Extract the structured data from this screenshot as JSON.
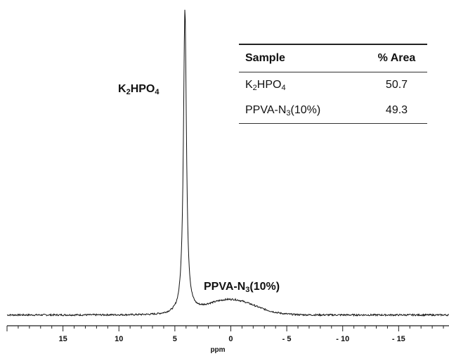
{
  "chart_data": {
    "type": "line",
    "xlabel": "ppm",
    "xlim": [
      20,
      -19.5
    ],
    "x_reversed": true,
    "x_ticks": [
      15,
      10,
      5,
      0,
      -5,
      -10,
      -15
    ],
    "x_tick_labels": [
      "15",
      "10",
      "5",
      "0",
      "- 5",
      "- 10",
      "- 15"
    ],
    "ylim": [
      0,
      100
    ],
    "y_axis_shown": false,
    "grid": false,
    "peaks": [
      {
        "name": "K2HPO4",
        "center_ppm": 4.1,
        "height": 100,
        "width_ppm": 0.32
      },
      {
        "name": "PPVA-N3(10%)",
        "center_ppm": 0.0,
        "height": 5.0,
        "width_ppm": 3.6
      }
    ],
    "series": [
      {
        "x": [
          20,
          15,
          10,
          8,
          6,
          5,
          4.6,
          4.4,
          4.25,
          4.15,
          4.1,
          4.05,
          3.95,
          3.8,
          3.6,
          3.2,
          2.5,
          1.5,
          0,
          -1.5,
          -3,
          -5,
          -10,
          -15,
          -19.5
        ],
        "y": [
          0.3,
          0.3,
          0.4,
          0.6,
          1.5,
          4.5,
          12,
          30,
          70,
          96,
          100,
          96,
          72,
          32,
          13,
          5.5,
          3.0,
          4.0,
          5.0,
          4.0,
          2.0,
          0.6,
          0.3,
          0.3,
          0.2
        ]
      }
    ],
    "annotations": [
      {
        "base": "K",
        "sub1": "2",
        "mid": "HPO",
        "sub2": "4",
        "tail": ""
      },
      {
        "base": "PPVA-N",
        "sub1": "3",
        "mid": "(10%)",
        "sub2": "",
        "tail": ""
      }
    ]
  },
  "table": {
    "headers": [
      "Sample",
      "% Area"
    ],
    "rows": [
      {
        "sample": {
          "base": "K",
          "sub1": "2",
          "mid": "HPO",
          "sub2": "4"
        },
        "area": "50.7"
      },
      {
        "sample": {
          "base": "PPVA-N",
          "sub1": "3",
          "mid": "(10%)",
          "sub2": ""
        },
        "area": "49.3"
      }
    ]
  }
}
